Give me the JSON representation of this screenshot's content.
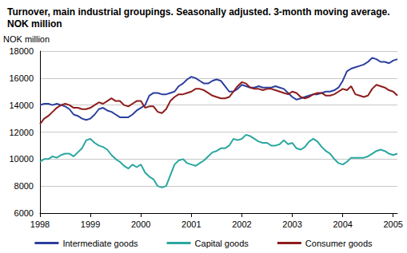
{
  "chart_data": {
    "type": "line",
    "title": "Turnover, main industrial groupings. Seasonally adjusted. 3-month moving average. NOK million",
    "y_label": "NOK million",
    "categories": [
      "1998",
      null,
      null,
      null,
      null,
      null,
      null,
      null,
      null,
      null,
      null,
      null,
      "1999",
      null,
      null,
      null,
      null,
      null,
      null,
      null,
      null,
      null,
      null,
      null,
      "2000",
      null,
      null,
      null,
      null,
      null,
      null,
      null,
      null,
      null,
      null,
      null,
      "2001",
      null,
      null,
      null,
      null,
      null,
      null,
      null,
      null,
      null,
      null,
      null,
      "2002",
      null,
      null,
      null,
      null,
      null,
      null,
      null,
      null,
      null,
      null,
      null,
      "2003",
      null,
      null,
      null,
      null,
      null,
      null,
      null,
      null,
      null,
      null,
      null,
      "2004",
      null,
      null,
      null,
      null,
      null,
      null,
      null,
      null,
      null,
      null,
      null,
      "2005",
      null
    ],
    "series": [
      {
        "name": "Intermediate goods",
        "color": "#2b3f9e",
        "values": [
          14000,
          14100,
          14100,
          14000,
          14100,
          14000,
          13900,
          13700,
          13300,
          13200,
          13000,
          12900,
          13000,
          13300,
          13700,
          13800,
          13600,
          13500,
          13300,
          13100,
          13100,
          13100,
          13300,
          13600,
          13800,
          14000,
          14700,
          14900,
          14900,
          14800,
          14800,
          14900,
          15000,
          15400,
          15600,
          15900,
          16100,
          16000,
          15800,
          15600,
          15600,
          15800,
          15900,
          15800,
          15400,
          15000,
          15000,
          15200,
          15500,
          15400,
          15300,
          15300,
          15400,
          15300,
          15300,
          15300,
          15400,
          15300,
          15200,
          14900,
          14600,
          14400,
          14500,
          14600,
          14700,
          14800,
          14800,
          14900,
          15000,
          15000,
          15100,
          15300,
          15800,
          16500,
          16700,
          16800,
          16900,
          17000,
          17200,
          17500,
          17400,
          17200,
          17200,
          17100,
          17300,
          17400
        ]
      },
      {
        "name": "Capital goods",
        "color": "#2aa79f",
        "values": [
          9800,
          10000,
          10000,
          10200,
          10100,
          10300,
          10400,
          10400,
          10200,
          10500,
          10800,
          11400,
          11500,
          11200,
          11000,
          10900,
          10700,
          10300,
          10000,
          9800,
          9500,
          9300,
          9600,
          9400,
          9600,
          9000,
          8700,
          8500,
          8000,
          7900,
          8000,
          8800,
          9600,
          9900,
          10000,
          9700,
          9600,
          9500,
          9700,
          9900,
          10200,
          10500,
          10600,
          10800,
          10800,
          11000,
          11500,
          11400,
          11500,
          11800,
          11700,
          11500,
          11300,
          11200,
          11200,
          11000,
          11000,
          11100,
          11400,
          11100,
          11200,
          10800,
          10700,
          10900,
          11300,
          11500,
          11300,
          10900,
          10600,
          10400,
          10000,
          9700,
          9600,
          9800,
          10100,
          10100,
          10100,
          10100,
          10200,
          10400,
          10600,
          10700,
          10600,
          10400,
          10300,
          10400
        ]
      },
      {
        "name": "Consumer goods",
        "color": "#8e1c1c",
        "values": [
          12600,
          13000,
          13200,
          13500,
          13800,
          14000,
          14100,
          14000,
          13800,
          13800,
          13700,
          13700,
          13800,
          14000,
          14200,
          14100,
          14300,
          14500,
          14300,
          14300,
          14000,
          13900,
          14100,
          14300,
          14300,
          13800,
          13900,
          13900,
          13500,
          13400,
          13700,
          14300,
          14600,
          14800,
          14800,
          14900,
          15000,
          15200,
          15200,
          15100,
          14900,
          14700,
          14600,
          14500,
          14500,
          14600,
          15000,
          15400,
          15700,
          15600,
          15300,
          15200,
          15200,
          15100,
          15200,
          15200,
          15100,
          15000,
          14900,
          14800,
          15000,
          14900,
          14600,
          14500,
          14600,
          14800,
          14900,
          14900,
          14700,
          14700,
          14800,
          15000,
          15200,
          15100,
          15400,
          14800,
          14700,
          14600,
          14700,
          15200,
          15500,
          15400,
          15300,
          15100,
          15000,
          14700
        ]
      }
    ],
    "ylim": [
      6000,
      18000
    ],
    "yticks": [
      6000,
      8000,
      10000,
      12000,
      14000,
      16000,
      18000
    ],
    "grid": true,
    "legend": "bottom"
  }
}
